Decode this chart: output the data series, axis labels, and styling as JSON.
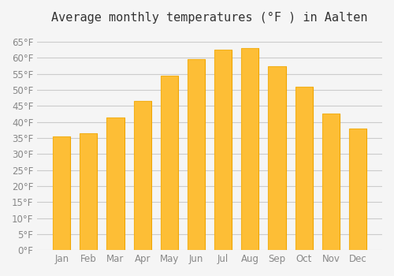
{
  "title": "Average monthly temperatures (°F ) in Aalten",
  "months": [
    "Jan",
    "Feb",
    "Mar",
    "Apr",
    "May",
    "Jun",
    "Jul",
    "Aug",
    "Sep",
    "Oct",
    "Nov",
    "Dec"
  ],
  "values": [
    35.5,
    36.5,
    41.5,
    46.5,
    54.5,
    59.5,
    62.5,
    63.0,
    57.5,
    51.0,
    42.5,
    38.0
  ],
  "bar_color": "#FDB724",
  "bar_edge_color": "#F0A500",
  "background_color": "#F5F5F5",
  "grid_color": "#CCCCCC",
  "text_color": "#888888",
  "ylim": [
    0,
    68
  ],
  "yticks": [
    0,
    5,
    10,
    15,
    20,
    25,
    30,
    35,
    40,
    45,
    50,
    55,
    60,
    65
  ],
  "title_fontsize": 11,
  "tick_fontsize": 8.5
}
